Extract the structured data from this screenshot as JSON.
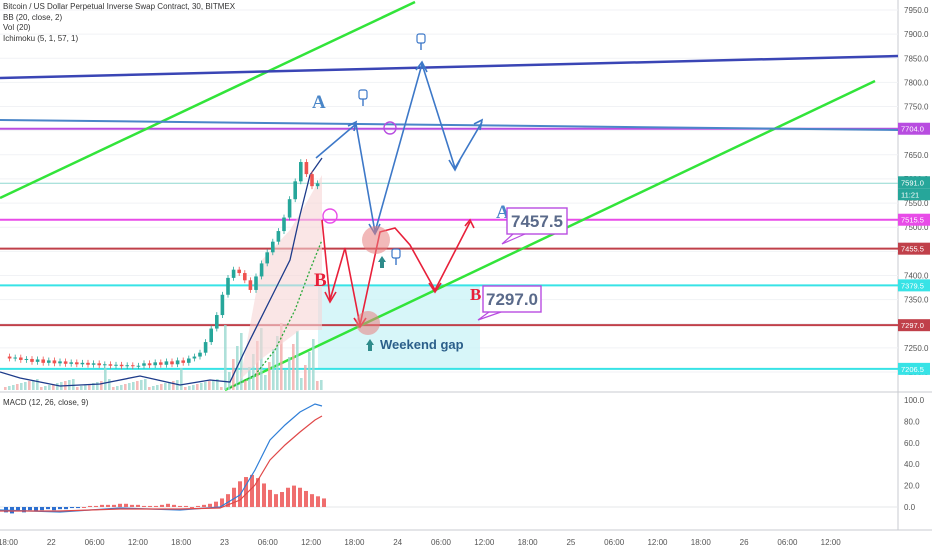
{
  "legend": {
    "title": "Bitcoin / US Dollar Perpetual Inverse Swap Contract, 30, BITMEX",
    "bb": "BB (20, close, 2)",
    "vol": "Vol (20)",
    "ichimoku": "Ichimoku (5, 1, 57, 1)",
    "macd": "MACD (12, 26, close, 9)"
  },
  "colors": {
    "green": "#32e43a",
    "navy": "#3a45b5",
    "steel": "#4a86c8",
    "purple": "#b84ce0",
    "magenta": "#e84ce8",
    "darkred": "#c0404a",
    "cyan": "#37e3e6",
    "red": "#e8203a",
    "blue_arrow": "#3d78c8",
    "gap_fill": "#c9f3f7",
    "candle_up": "#26a69a",
    "candle_down": "#ef5350"
  },
  "annotations": {
    "letter_a1": "A",
    "letter_a2": "A",
    "letter_b1": "B",
    "letter_b2": "B",
    "callout1": "7457.5",
    "callout2": "7297.0",
    "weekend_gap": "Weekend gap"
  },
  "chart_data": [
    {
      "type": "line",
      "title": "Bitcoin / US Dollar Perpetual Inverse Swap Contract, 30, BITMEX",
      "y_axis_ticks": [
        7200,
        7250,
        7300,
        7350,
        7400,
        7450,
        7500,
        7550,
        7600,
        7650,
        7700,
        7750,
        7800,
        7850,
        7900,
        7950
      ],
      "ylim": [
        7180,
        7970
      ],
      "x_tick_labels": [
        "18:00",
        "22",
        "06:00",
        "12:00",
        "18:00",
        "23",
        "06:00",
        "12:00",
        "18:00",
        "24",
        "06:00",
        "12:00",
        "18:00",
        "25",
        "06:00",
        "12:00",
        "18:00",
        "26",
        "06:00",
        "12:00"
      ],
      "price_labels": [
        {
          "value": "7704.0",
          "color": "#b84ce0"
        },
        {
          "value": "7591.0",
          "color": "#26a69a"
        },
        {
          "value": "11:21",
          "color": "#26a69a"
        },
        {
          "value": "7515.5",
          "color": "#e84ce8"
        },
        {
          "value": "7455.5",
          "color": "#c0404a"
        },
        {
          "value": "7379.5",
          "color": "#37e3e6"
        },
        {
          "value": "7297.0",
          "color": "#c0404a"
        },
        {
          "value": "7206.5",
          "color": "#37e3e6"
        }
      ],
      "horizontal_levels": [
        7704.0,
        7591.0,
        7515.5,
        7455.5,
        7379.5,
        7297.0,
        7206.5
      ],
      "close_series": [
        7232,
        7228,
        7230,
        7225,
        7227,
        7221,
        7226,
        7219,
        7224,
        7218,
        7222,
        7217,
        7220,
        7216,
        7219,
        7215,
        7218,
        7214,
        7216,
        7213,
        7215,
        7212,
        7214,
        7212,
        7213,
        7218,
        7214,
        7220,
        7215,
        7222,
        7216,
        7224,
        7219,
        7228,
        7232,
        7240,
        7262,
        7290,
        7318,
        7360,
        7395,
        7412,
        7405,
        7390,
        7370,
        7398,
        7425,
        7448,
        7470,
        7492,
        7520,
        7558,
        7595,
        7635,
        7610,
        7585,
        7591
      ]
    },
    {
      "type": "bar",
      "title": "MACD (12, 26, close, 9)",
      "y_axis_ticks": [
        0.0,
        20.0,
        40.0,
        60.0,
        80.0,
        100.0
      ],
      "ylim": [
        -10,
        105
      ],
      "series": [
        {
          "values": [
            -5,
            -6,
            -4,
            -5,
            -3,
            -4,
            -3,
            -2,
            -3,
            -2,
            -2,
            -1,
            -1,
            0,
            1,
            1,
            2,
            2,
            2,
            3,
            3,
            2,
            2,
            1,
            1,
            1,
            2,
            3,
            2,
            1,
            1,
            0,
            1,
            2,
            3,
            5,
            8,
            12,
            18,
            24,
            28,
            30,
            27,
            22,
            16,
            12,
            14,
            18,
            20,
            18,
            15,
            12,
            10,
            8
          ]
        }
      ]
    }
  ]
}
